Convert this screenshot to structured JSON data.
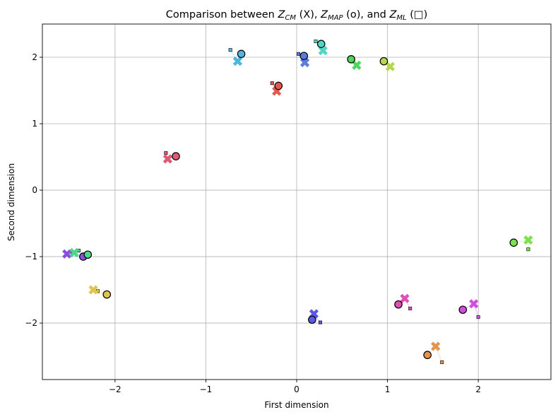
{
  "chart_data": {
    "type": "scatter",
    "title": "Comparison between Z_CM (X), Z_MAP (o), and Z_ML (□)",
    "title_parts": {
      "prefix": "Comparison between ",
      "z1": "Z",
      "s1": "CM",
      "m1": " (X), ",
      "z2": "Z",
      "s2": "MAP",
      "m2": " (o), and ",
      "z3": "Z",
      "s3": "ML",
      "m3": " (□)"
    },
    "xlabel": "First dimension",
    "ylabel": "Second dimension",
    "xlim": [
      -2.8,
      2.8
    ],
    "ylim": [
      -2.85,
      2.5
    ],
    "xticks": [
      -2,
      -1,
      0,
      1,
      2
    ],
    "yticks": [
      -2,
      -1,
      0,
      1,
      2
    ],
    "xtick_labels": [
      "−2",
      "−1",
      "0",
      "1",
      "2"
    ],
    "ytick_labels": [
      "−2",
      "−1",
      "0",
      "1",
      "2"
    ],
    "grid": true,
    "marker_legend": {
      "cm": "X",
      "map": "o",
      "ml": "□"
    },
    "points": [
      {
        "color": "#4fb6db",
        "cm": [
          -0.65,
          1.94
        ],
        "map": [
          -0.61,
          2.05
        ],
        "ml": [
          -0.73,
          2.11
        ]
      },
      {
        "color": "#e05a4e",
        "cm": [
          -0.22,
          1.49
        ],
        "map": [
          -0.2,
          1.57
        ],
        "ml": [
          -0.27,
          1.61
        ]
      },
      {
        "color": "#5a7be0",
        "cm": [
          0.09,
          1.92
        ],
        "map": [
          0.08,
          2.02
        ],
        "ml": [
          0.02,
          2.05
        ]
      },
      {
        "color": "#4fd6c4",
        "cm": [
          0.29,
          2.1
        ],
        "map": [
          0.27,
          2.2
        ],
        "ml": [
          0.21,
          2.24
        ]
      },
      {
        "color": "#4fd65a",
        "cm": [
          0.66,
          1.88
        ],
        "map": [
          0.6,
          1.97
        ],
        "ml": [
          0.61,
          1.98
        ]
      },
      {
        "color": "#b6d64f",
        "cm": [
          1.03,
          1.86
        ],
        "map": [
          0.96,
          1.94
        ],
        "ml": [
          0.96,
          1.94
        ]
      },
      {
        "color": "#e05a78",
        "cm": [
          -1.42,
          0.47
        ],
        "map": [
          -1.33,
          0.51
        ],
        "ml": [
          -1.44,
          0.56
        ]
      },
      {
        "color": "#8a4fe0",
        "cm": [
          -2.53,
          -0.96
        ],
        "map": [
          -2.35,
          -1.0
        ],
        "ml": [
          -2.47,
          -0.95
        ]
      },
      {
        "color": "#4fd68a",
        "cm": [
          -2.45,
          -0.94
        ],
        "map": [
          -2.3,
          -0.97
        ],
        "ml": [
          -2.4,
          -0.91
        ]
      },
      {
        "color": "#e0c44f",
        "cm": [
          -2.24,
          -1.5
        ],
        "map": [
          -2.09,
          -1.57
        ],
        "ml": [
          -2.19,
          -1.52
        ]
      },
      {
        "color": "#5a5ae0",
        "cm": [
          0.19,
          -1.86
        ],
        "map": [
          0.17,
          -1.95
        ],
        "ml": [
          0.26,
          -1.99
        ]
      },
      {
        "color": "#e04fb6",
        "cm": [
          1.19,
          -1.63
        ],
        "map": [
          1.12,
          -1.72
        ],
        "ml": [
          1.25,
          -1.78
        ]
      },
      {
        "color": "#d14fe0",
        "cm": [
          1.95,
          -1.71
        ],
        "map": [
          1.83,
          -1.8
        ],
        "ml": [
          2.0,
          -1.91
        ]
      },
      {
        "color": "#e0944f",
        "cm": [
          1.53,
          -2.35
        ],
        "map": [
          1.44,
          -2.48
        ],
        "ml": [
          1.6,
          -2.59
        ]
      },
      {
        "color": "#7ee04f",
        "cm": [
          2.55,
          -0.75
        ],
        "map": [
          2.39,
          -0.79
        ],
        "ml": [
          2.55,
          -0.89
        ]
      }
    ]
  }
}
